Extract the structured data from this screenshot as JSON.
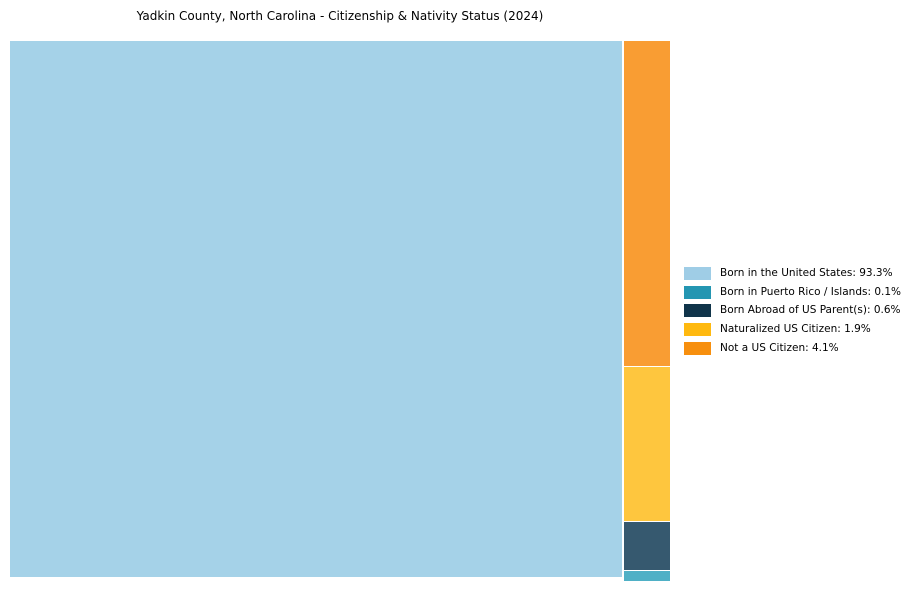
{
  "window": {
    "background_color": "#ffffff"
  },
  "chart": {
    "title": "Yadkin County, North Carolina - Citizenship & Nativity Status (2024)"
  },
  "legend": {
    "items": [
      {
        "text": "Born in the United States: 93.3%",
        "color": "#9fcde6"
      },
      {
        "text": "Born in Puerto Rico / Islands: 0.1%",
        "color": "#2496b2"
      },
      {
        "text": "Born Abroad of US Parent(s): 0.6%",
        "color": "#10344a"
      },
      {
        "text": "Naturalized US Citizen: 1.9%",
        "color": "#ffb90f"
      },
      {
        "text": "Not a US Citizen: 4.1%",
        "color": "#f78f0e"
      }
    ]
  },
  "chart_data": {
    "type": "treemap",
    "title": "Yadkin County, North Carolina - Citizenship & Nativity Status (2024)",
    "unit": "percent",
    "total": 100,
    "legend_position": "right",
    "series": [
      {
        "label": "Born in the United States",
        "value": 93.3,
        "fill_color": "#a5d2e8",
        "legend_color": "#9fcde6"
      },
      {
        "label": "Born in Puerto Rico / Islands",
        "value": 0.1,
        "fill_color": "#4fb0c6",
        "legend_color": "#2496b2"
      },
      {
        "label": "Born Abroad of US Parent(s)",
        "value": 0.6,
        "fill_color": "#36596f",
        "legend_color": "#10344a"
      },
      {
        "label": "Naturalized US Citizen",
        "value": 1.9,
        "fill_color": "#fec63e",
        "legend_color": "#ffb90f"
      },
      {
        "label": "Not a US Citizen",
        "value": 4.1,
        "fill_color": "#f99d33",
        "legend_color": "#f78f0e"
      }
    ],
    "layout_hint": "Largest category fills left block full height; remaining categories stacked top-to-bottom in a narrow right column: Not a US Citizen, Naturalized US Citizen, Born Abroad of US Parent(s), Born in Puerto Rico / Islands"
  }
}
